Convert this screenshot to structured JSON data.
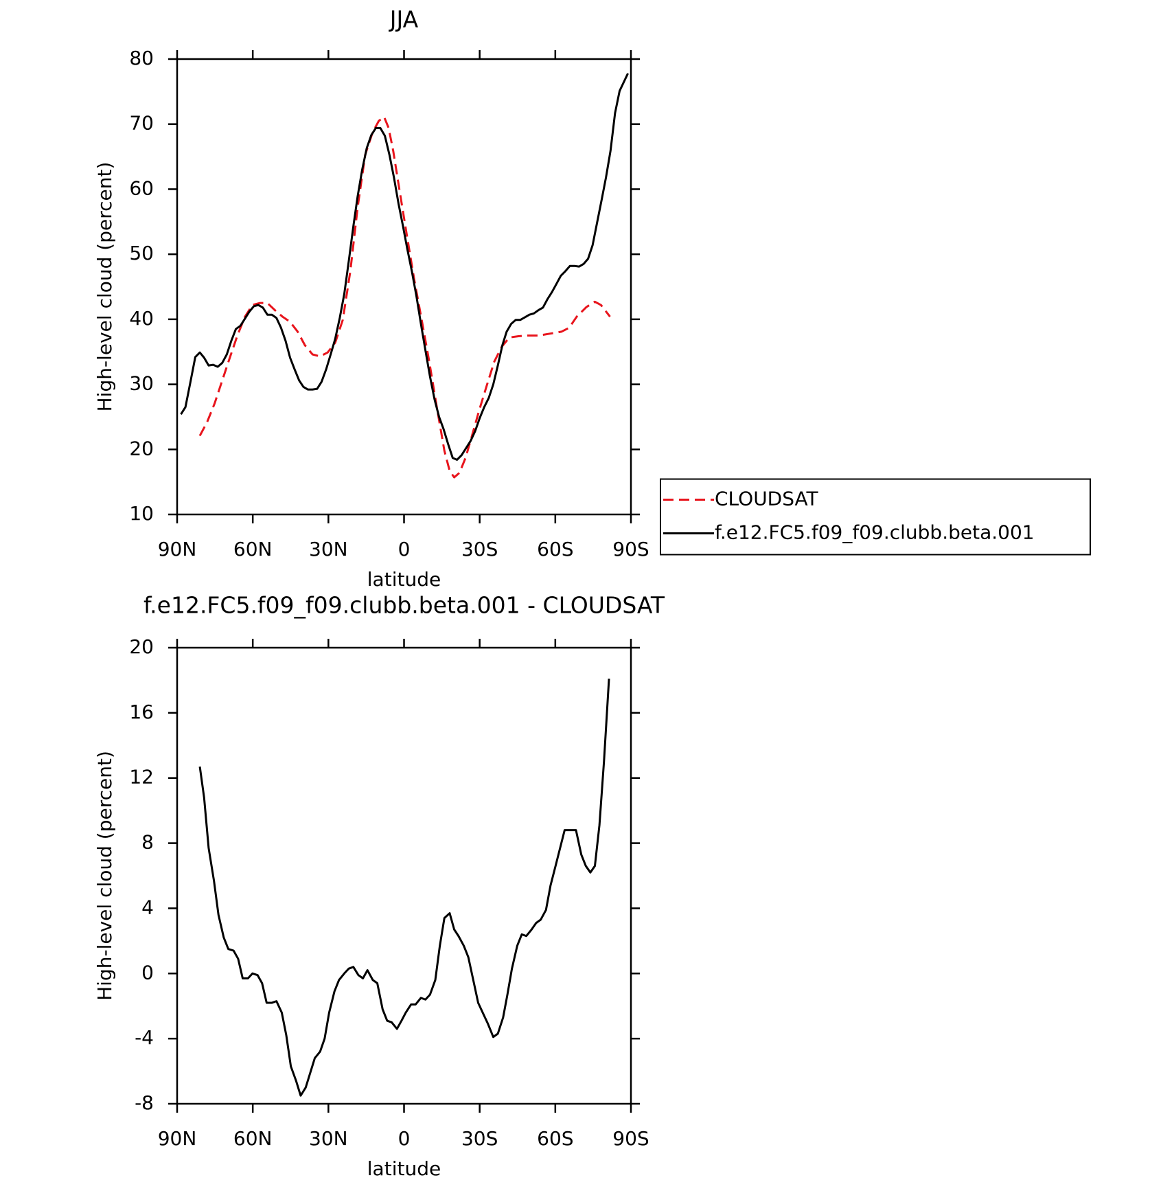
{
  "chart_data": [
    {
      "type": "line",
      "title": "JJA",
      "xlabel": "latitude",
      "ylabel": "High-level cloud (percent)",
      "xlim": [
        90,
        -90
      ],
      "xticks": [
        {
          "value": 90,
          "label": "90N"
        },
        {
          "value": 60,
          "label": "60N"
        },
        {
          "value": 30,
          "label": "30N"
        },
        0,
        {
          "value": -30,
          "label": "30S"
        },
        {
          "value": -60,
          "label": "60S"
        },
        {
          "value": -90,
          "label": "90S"
        }
      ],
      "ylim": [
        10,
        80
      ],
      "yticks": [
        10,
        20,
        30,
        40,
        50,
        60,
        70,
        80
      ],
      "legend": "right",
      "series": [
        {
          "name": "CLOUDSAT",
          "color": "#e8141c",
          "linestyle": "dashed",
          "x": [
            81.0,
            78.1,
            75.1,
            72.1,
            69.1,
            66.1,
            63.1,
            60.1,
            57.2,
            54.2,
            51.2,
            48.2,
            45.2,
            42.2,
            39.3,
            36.3,
            33.3,
            30.3,
            27.3,
            24.3,
            21.3,
            18.4,
            15.4,
            12.4,
            10.0,
            7.9,
            6.1,
            4.3,
            1.9,
            -1.0,
            -4.0,
            -7.0,
            -10.0,
            -13.0,
            -16.0,
            -18.1,
            -19.9,
            -22.0,
            -24.4,
            -26.8,
            -29.8,
            -32.8,
            -35.8,
            -38.8,
            -41.8,
            -45.4,
            -49.0,
            -53.5,
            -58.0,
            -62.5,
            -65.5,
            -68.5,
            -72.4,
            -75.7,
            -78.1,
            -81.7
          ],
          "values": [
            22.1,
            24.2,
            27.1,
            30.6,
            34.1,
            37.5,
            40.4,
            42.2,
            42.5,
            42.5,
            41.4,
            40.4,
            39.6,
            38.1,
            36.0,
            34.6,
            34.3,
            34.9,
            36.4,
            39.9,
            47.4,
            57.2,
            65.3,
            68.8,
            70.5,
            71.1,
            69.4,
            65.9,
            60.1,
            53.2,
            46.2,
            39.9,
            33.5,
            26.5,
            19.8,
            16.7,
            15.7,
            16.4,
            18.7,
            21.9,
            26.0,
            29.8,
            33.5,
            35.8,
            37.2,
            37.4,
            37.5,
            37.5,
            37.8,
            38.1,
            38.7,
            40.4,
            41.9,
            42.7,
            42.2,
            40.4
          ]
        },
        {
          "name": "f.e12.FC5.f09_f09.clubb.beta.001",
          "color": "#000000",
          "linestyle": "solid",
          "x": [
            88.5,
            86.7,
            84.6,
            82.8,
            81.0,
            79.3,
            77.5,
            75.7,
            73.9,
            72.1,
            70.3,
            68.5,
            66.7,
            64.9,
            63.1,
            61.3,
            59.6,
            57.8,
            56.0,
            54.2,
            52.4,
            50.6,
            48.8,
            47.0,
            45.2,
            43.4,
            41.6,
            39.9,
            38.1,
            36.3,
            34.5,
            32.7,
            30.9,
            29.1,
            27.3,
            25.5,
            23.7,
            21.9,
            20.1,
            18.4,
            16.6,
            14.8,
            13.0,
            11.2,
            9.4,
            7.6,
            5.8,
            4.0,
            2.2,
            0.4,
            -1.3,
            -3.1,
            -4.9,
            -6.7,
            -8.5,
            -10.3,
            -12.1,
            -13.9,
            -15.7,
            -17.5,
            -19.3,
            -21.0,
            -22.8,
            -24.6,
            -26.4,
            -28.2,
            -30.0,
            -31.8,
            -33.6,
            -35.4,
            -37.2,
            -39.0,
            -40.7,
            -42.5,
            -44.3,
            -46.1,
            -47.9,
            -49.7,
            -51.5,
            -53.3,
            -55.1,
            -56.9,
            -58.7,
            -60.4,
            -62.2,
            -64.0,
            -65.8,
            -67.6,
            -69.4,
            -71.2,
            -73.0,
            -74.8,
            -76.6,
            -78.4,
            -80.1,
            -81.9,
            -83.7,
            -85.5,
            -88.8
          ],
          "values": [
            25.4,
            26.5,
            30.6,
            34.2,
            34.9,
            34.1,
            32.9,
            33.0,
            32.7,
            33.3,
            34.6,
            36.7,
            38.5,
            39.0,
            40.1,
            41.2,
            42.0,
            42.2,
            41.8,
            40.7,
            40.7,
            40.2,
            38.7,
            36.7,
            34.1,
            32.3,
            30.6,
            29.6,
            29.2,
            29.2,
            29.3,
            30.4,
            32.3,
            34.6,
            37.0,
            40.2,
            43.9,
            49.0,
            54.3,
            58.9,
            63.0,
            66.3,
            68.3,
            69.4,
            69.4,
            68.2,
            65.3,
            61.8,
            57.8,
            54.3,
            50.8,
            47.4,
            43.6,
            39.3,
            35.2,
            31.2,
            27.7,
            25.0,
            23.1,
            20.8,
            18.7,
            18.4,
            19.1,
            20.2,
            21.3,
            22.8,
            24.8,
            26.5,
            27.9,
            30.0,
            32.9,
            36.0,
            38.1,
            39.3,
            39.9,
            39.9,
            40.3,
            40.7,
            40.9,
            41.4,
            41.8,
            43.1,
            44.2,
            45.4,
            46.7,
            47.4,
            48.2,
            48.2,
            48.1,
            48.5,
            49.3,
            51.4,
            54.9,
            58.4,
            61.8,
            65.9,
            71.7,
            75.1,
            77.8
          ]
        }
      ]
    },
    {
      "type": "line",
      "title": "f.e12.FC5.f09_f09.clubb.beta.001 - CLOUDSAT",
      "xlabel": "latitude",
      "ylabel": "High-level cloud (percent)",
      "xlim": [
        90,
        -90
      ],
      "xticks": [
        {
          "value": 90,
          "label": "90N"
        },
        {
          "value": 60,
          "label": "60N"
        },
        {
          "value": 30,
          "label": "30N"
        },
        0,
        {
          "value": -30,
          "label": "30S"
        },
        {
          "value": -60,
          "label": "60S"
        },
        {
          "value": -90,
          "label": "90S"
        }
      ],
      "ylim": [
        -8,
        20
      ],
      "yticks": [
        -8,
        -4,
        0,
        4,
        8,
        12,
        16,
        20
      ],
      "color": "#000000",
      "x": [
        81.0,
        79.3,
        77.5,
        75.4,
        73.6,
        71.5,
        69.7,
        67.6,
        65.8,
        64.0,
        61.9,
        60.1,
        58.1,
        56.3,
        54.5,
        52.4,
        50.6,
        48.5,
        46.7,
        44.9,
        42.8,
        41.0,
        39.0,
        37.2,
        35.4,
        33.3,
        31.5,
        29.7,
        27.6,
        25.8,
        23.7,
        21.9,
        20.1,
        18.1,
        16.3,
        14.5,
        12.4,
        10.6,
        8.5,
        6.7,
        4.9,
        2.8,
        1.0,
        -0.7,
        -2.8,
        -4.6,
        -6.7,
        -8.5,
        -10.3,
        -12.4,
        -14.2,
        -16.0,
        -18.1,
        -19.9,
        -21.6,
        -23.7,
        -25.5,
        -27.6,
        -29.4,
        -31.2,
        -33.3,
        -35.4,
        -37.2,
        -39.3,
        -41.0,
        -42.8,
        -44.9,
        -46.7,
        -48.5,
        -50.6,
        -52.4,
        -54.2,
        -56.3,
        -58.1,
        -60.1,
        -61.9,
        -63.7,
        -65.8,
        -68.2,
        -70.3,
        -72.1,
        -73.9,
        -75.7,
        -77.5,
        -79.3,
        -81.3
      ],
      "values": [
        12.7,
        10.8,
        7.7,
        5.7,
        3.6,
        2.2,
        1.5,
        1.4,
        0.9,
        -0.3,
        -0.3,
        0.0,
        -0.1,
        -0.6,
        -1.8,
        -1.8,
        -1.7,
        -2.4,
        -3.8,
        -5.7,
        -6.6,
        -7.5,
        -7.0,
        -6.1,
        -5.2,
        -4.8,
        -4.0,
        -2.4,
        -1.1,
        -0.4,
        0.0,
        0.3,
        0.4,
        -0.1,
        -0.3,
        0.2,
        -0.4,
        -0.6,
        -2.2,
        -2.9,
        -3.0,
        -3.4,
        -2.9,
        -2.4,
        -1.9,
        -1.9,
        -1.5,
        -1.6,
        -1.3,
        -0.4,
        1.7,
        3.4,
        3.7,
        2.7,
        2.3,
        1.7,
        1.0,
        -0.5,
        -1.8,
        -2.4,
        -3.1,
        -3.9,
        -3.7,
        -2.7,
        -1.3,
        0.3,
        1.7,
        2.4,
        2.3,
        2.7,
        3.1,
        3.3,
        3.9,
        5.4,
        6.6,
        7.7,
        8.8,
        8.8,
        8.8,
        7.3,
        6.6,
        6.2,
        6.6,
        9.1,
        13.0,
        18.1
      ]
    }
  ]
}
